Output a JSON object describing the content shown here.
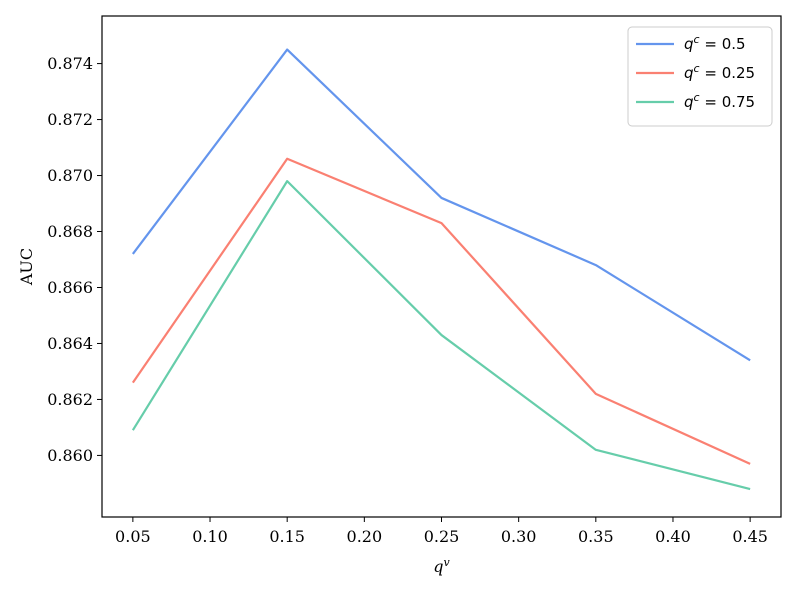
{
  "chart_data": {
    "type": "line",
    "xlabel_base": "q",
    "xlabel_sup": "v",
    "ylabel": "AUC",
    "x": [
      0.05,
      0.15,
      0.25,
      0.35,
      0.45
    ],
    "xticks": [
      0.05,
      0.1,
      0.15,
      0.2,
      0.25,
      0.3,
      0.35,
      0.4,
      0.45
    ],
    "xtick_labels": [
      "0.05",
      "0.10",
      "0.15",
      "0.20",
      "0.25",
      "0.30",
      "0.35",
      "0.40",
      "0.45"
    ],
    "yticks": [
      0.86,
      0.862,
      0.864,
      0.866,
      0.868,
      0.87,
      0.872,
      0.874
    ],
    "ytick_labels": [
      "0.860",
      "0.862",
      "0.864",
      "0.866",
      "0.868",
      "0.870",
      "0.872",
      "0.874"
    ],
    "xlim": [
      0.03,
      0.47
    ],
    "ylim": [
      0.8578,
      0.8757
    ],
    "grid": false,
    "legend_position": "top-right",
    "series": [
      {
        "name": "q^c = 0.5",
        "base": "q",
        "sup": "c",
        "rest": " = 0.5",
        "color": "#6495ED",
        "values": [
          0.8672,
          0.8745,
          0.8692,
          0.8668,
          0.8634
        ]
      },
      {
        "name": "q^c = 0.25",
        "base": "q",
        "sup": "c",
        "rest": " = 0.25",
        "color": "#FA8072",
        "values": [
          0.8626,
          0.8706,
          0.8683,
          0.8622,
          0.8597
        ]
      },
      {
        "name": "q^c = 0.75",
        "base": "q",
        "sup": "c",
        "rest": " = 0.75",
        "color": "#66CDAA",
        "values": [
          0.8609,
          0.8698,
          0.8643,
          0.8602,
          0.8588
        ]
      }
    ]
  }
}
